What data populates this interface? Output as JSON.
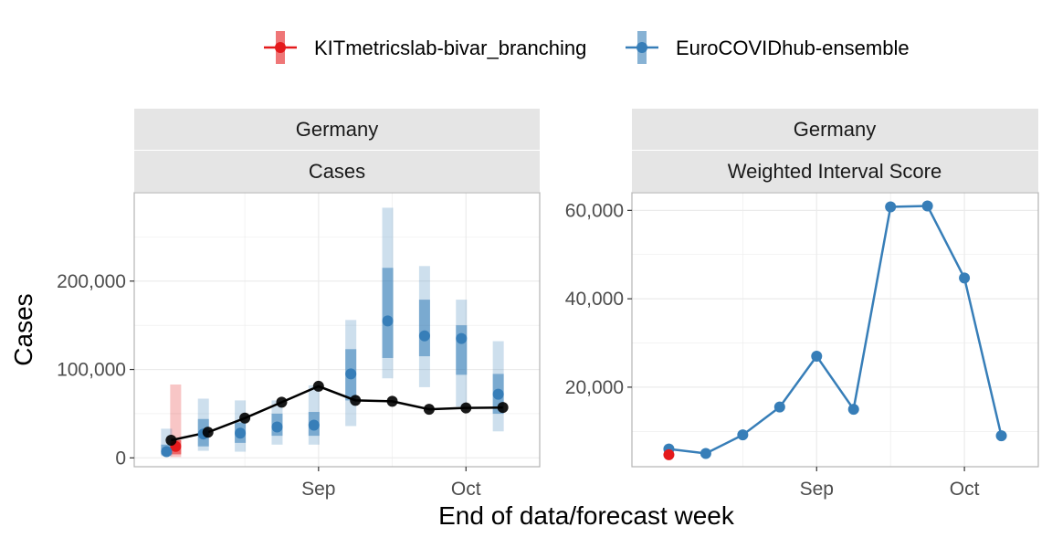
{
  "legend": {
    "items": [
      {
        "label": "KITmetricslab-bivar_branching",
        "color": "#e41a1c"
      },
      {
        "label": "EuroCOVIDhub-ensemble",
        "color": "#377eb8"
      }
    ]
  },
  "axes": {
    "x_title": "End of data/forecast week",
    "y_title": "Cases"
  },
  "chart_data": [
    {
      "type": "line",
      "panel": "left",
      "strip_top": "Germany",
      "strip_bottom": "Cases",
      "ylabel": "Cases",
      "xlabel": "End of data/forecast week",
      "xlim": [
        "2021-07-31",
        "2021-10-16"
      ],
      "ylim": [
        -10000,
        300000
      ],
      "x_ticks": [
        {
          "date": "2021-09-04",
          "label": "Sep"
        },
        {
          "date": "2021-10-02",
          "label": "Oct"
        }
      ],
      "y_ticks": [
        {
          "value": 0,
          "label": "0"
        },
        {
          "value": 100000,
          "label": "100,000"
        },
        {
          "value": 200000,
          "label": "200,000"
        }
      ],
      "grid": true,
      "truth": {
        "name": "",
        "color": "#000000",
        "points": [
          {
            "x": "2021-08-07",
            "y": 20000
          },
          {
            "x": "2021-08-14",
            "y": 29000
          },
          {
            "x": "2021-08-21",
            "y": 45000
          },
          {
            "x": "2021-08-28",
            "y": 63000
          },
          {
            "x": "2021-09-04",
            "y": 81000
          },
          {
            "x": "2021-09-11",
            "y": 65000
          },
          {
            "x": "2021-09-18",
            "y": 64000
          },
          {
            "x": "2021-09-25",
            "y": 55000
          },
          {
            "x": "2021-10-02",
            "y": 56500
          },
          {
            "x": "2021-10-09",
            "y": 57000
          }
        ]
      },
      "series": [
        {
          "name": "KITmetricslab-bivar_branching",
          "color": "#e41a1c",
          "points": [
            {
              "x": "2021-08-07",
              "median": 13000,
              "inner_low": 4000,
              "inner_high": 20000,
              "outer_low": 1000,
              "outer_high": 83000
            }
          ]
        },
        {
          "name": "EuroCOVIDhub-ensemble",
          "color": "#377eb8",
          "points": [
            {
              "x": "2021-08-07",
              "median": 7000,
              "inner_low": 4000,
              "inner_high": 15000,
              "outer_low": 2000,
              "outer_high": 33000
            },
            {
              "x": "2021-08-14",
              "median": 27000,
              "inner_low": 13000,
              "inner_high": 44000,
              "outer_low": 8000,
              "outer_high": 67000
            },
            {
              "x": "2021-08-21",
              "median": 28000,
              "inner_low": 17000,
              "inner_high": 40000,
              "outer_low": 7000,
              "outer_high": 65000
            },
            {
              "x": "2021-08-28",
              "median": 35000,
              "inner_low": 25000,
              "inner_high": 50000,
              "outer_low": 15000,
              "outer_high": 65000
            },
            {
              "x": "2021-09-04",
              "median": 37000,
              "inner_low": 25000,
              "inner_high": 52000,
              "outer_low": 15000,
              "outer_high": 82000
            },
            {
              "x": "2021-09-11",
              "median": 95000,
              "inner_low": 65000,
              "inner_high": 123000,
              "outer_low": 36000,
              "outer_high": 156000
            },
            {
              "x": "2021-09-18",
              "median": 155000,
              "inner_low": 113000,
              "inner_high": 215000,
              "outer_low": 90000,
              "outer_high": 283000
            },
            {
              "x": "2021-09-25",
              "median": 138000,
              "inner_low": 115000,
              "inner_high": 179000,
              "outer_low": 80000,
              "outer_high": 217000
            },
            {
              "x": "2021-10-02",
              "median": 135000,
              "inner_low": 94000,
              "inner_high": 150000,
              "outer_low": 58000,
              "outer_high": 179000
            },
            {
              "x": "2021-10-09",
              "median": 72000,
              "inner_low": 50000,
              "inner_high": 95000,
              "outer_low": 30000,
              "outer_high": 132000
            }
          ]
        }
      ]
    },
    {
      "type": "line",
      "panel": "right",
      "strip_top": "Germany",
      "strip_bottom": "Weighted Interval Score",
      "xlabel": "End of data/forecast week",
      "xlim": [
        "2021-07-31",
        "2021-10-16"
      ],
      "ylim": [
        2000,
        64000
      ],
      "x_ticks": [
        {
          "date": "2021-09-04",
          "label": "Sep"
        },
        {
          "date": "2021-10-02",
          "label": "Oct"
        }
      ],
      "y_ticks": [
        {
          "value": 20000,
          "label": "20,000"
        },
        {
          "value": 40000,
          "label": "40,000"
        },
        {
          "value": 60000,
          "label": "60,000"
        }
      ],
      "grid": true,
      "series": [
        {
          "name": "KITmetricslab-bivar_branching",
          "color": "#e41a1c",
          "points": [
            {
              "x": "2021-08-07",
              "y": 4700
            }
          ]
        },
        {
          "name": "EuroCOVIDhub-ensemble",
          "color": "#377eb8",
          "points": [
            {
              "x": "2021-08-07",
              "y": 6000
            },
            {
              "x": "2021-08-14",
              "y": 5000
            },
            {
              "x": "2021-08-21",
              "y": 9200
            },
            {
              "x": "2021-08-28",
              "y": 15500
            },
            {
              "x": "2021-09-04",
              "y": 27000
            },
            {
              "x": "2021-09-11",
              "y": 15000
            },
            {
              "x": "2021-09-18",
              "y": 60800
            },
            {
              "x": "2021-09-25",
              "y": 61000
            },
            {
              "x": "2021-10-02",
              "y": 44700
            },
            {
              "x": "2021-10-09",
              "y": 9000
            }
          ]
        }
      ]
    }
  ]
}
